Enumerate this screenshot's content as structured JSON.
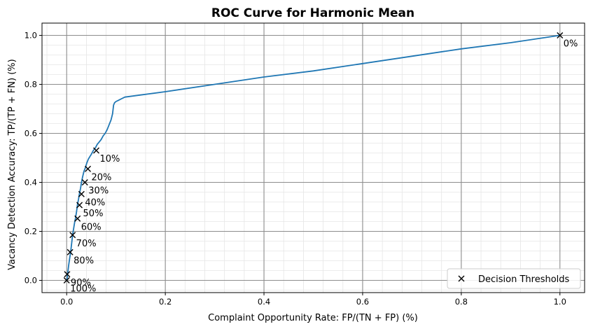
{
  "chart_data": {
    "type": "line",
    "title": "ROC Curve for Harmonic Mean",
    "xlabel": "Complaint Opportunity Rate: FP/(TN + FP) (%)",
    "ylabel": "Vacancy Detection Accuracy: TP/(TP + FN) (%)",
    "xlim": [
      -0.05,
      1.05
    ],
    "ylim": [
      -0.05,
      1.05
    ],
    "xticks": [
      0.0,
      0.2,
      0.4,
      0.6,
      0.8,
      1.0
    ],
    "yticks": [
      0.0,
      0.2,
      0.4,
      0.6,
      0.8,
      1.0
    ],
    "xtick_labels": [
      "0.0",
      "0.2",
      "0.4",
      "0.6",
      "0.8",
      "1.0"
    ],
    "ytick_labels": [
      "0.0",
      "0.2",
      "0.4",
      "0.6",
      "0.8",
      "1.0"
    ],
    "grid": "major and minor",
    "legend_position": "lower-right",
    "line_color": "#1f77b4",
    "marker_color": "#000000",
    "series": [
      {
        "x": [
          0.0,
          0.001,
          0.002,
          0.004,
          0.006,
          0.008,
          0.01,
          0.012,
          0.014,
          0.016,
          0.018,
          0.02,
          0.022,
          0.024,
          0.026,
          0.028,
          0.03,
          0.032,
          0.035,
          0.038,
          0.041,
          0.044,
          0.047,
          0.05,
          0.054,
          0.058,
          0.062,
          0.066,
          0.07,
          0.074,
          0.078,
          0.082,
          0.086,
          0.09,
          0.093,
          0.095,
          0.097,
          0.1,
          0.105,
          0.11,
          0.118,
          0.2,
          0.3,
          0.4,
          0.5,
          0.6,
          0.7,
          0.8,
          0.9,
          1.0
        ],
        "y": [
          0.0,
          0.01,
          0.025,
          0.06,
          0.09,
          0.115,
          0.15,
          0.185,
          0.21,
          0.235,
          0.255,
          0.28,
          0.31,
          0.33,
          0.355,
          0.375,
          0.4,
          0.42,
          0.445,
          0.46,
          0.48,
          0.495,
          0.505,
          0.515,
          0.53,
          0.54,
          0.555,
          0.565,
          0.575,
          0.59,
          0.6,
          0.615,
          0.635,
          0.655,
          0.68,
          0.715,
          0.725,
          0.73,
          0.735,
          0.74,
          0.748,
          0.77,
          0.8,
          0.83,
          0.855,
          0.885,
          0.915,
          0.945,
          0.97,
          1.0
        ]
      }
    ],
    "thresholds": [
      {
        "label": "0%",
        "x": 1.0,
        "y": 1.0
      },
      {
        "label": "10%",
        "x": 0.06,
        "y": 0.53
      },
      {
        "label": "20%",
        "x": 0.043,
        "y": 0.455
      },
      {
        "label": "30%",
        "x": 0.037,
        "y": 0.4
      },
      {
        "label": "40%",
        "x": 0.03,
        "y": 0.352
      },
      {
        "label": "50%",
        "x": 0.026,
        "y": 0.307
      },
      {
        "label": "60%",
        "x": 0.022,
        "y": 0.252
      },
      {
        "label": "70%",
        "x": 0.012,
        "y": 0.185
      },
      {
        "label": "80%",
        "x": 0.007,
        "y": 0.115
      },
      {
        "label": "90%",
        "x": 0.001,
        "y": 0.025
      },
      {
        "label": "100%",
        "x": 0.0,
        "y": 0.0
      }
    ],
    "legend": {
      "label": "Decision Thresholds"
    }
  }
}
